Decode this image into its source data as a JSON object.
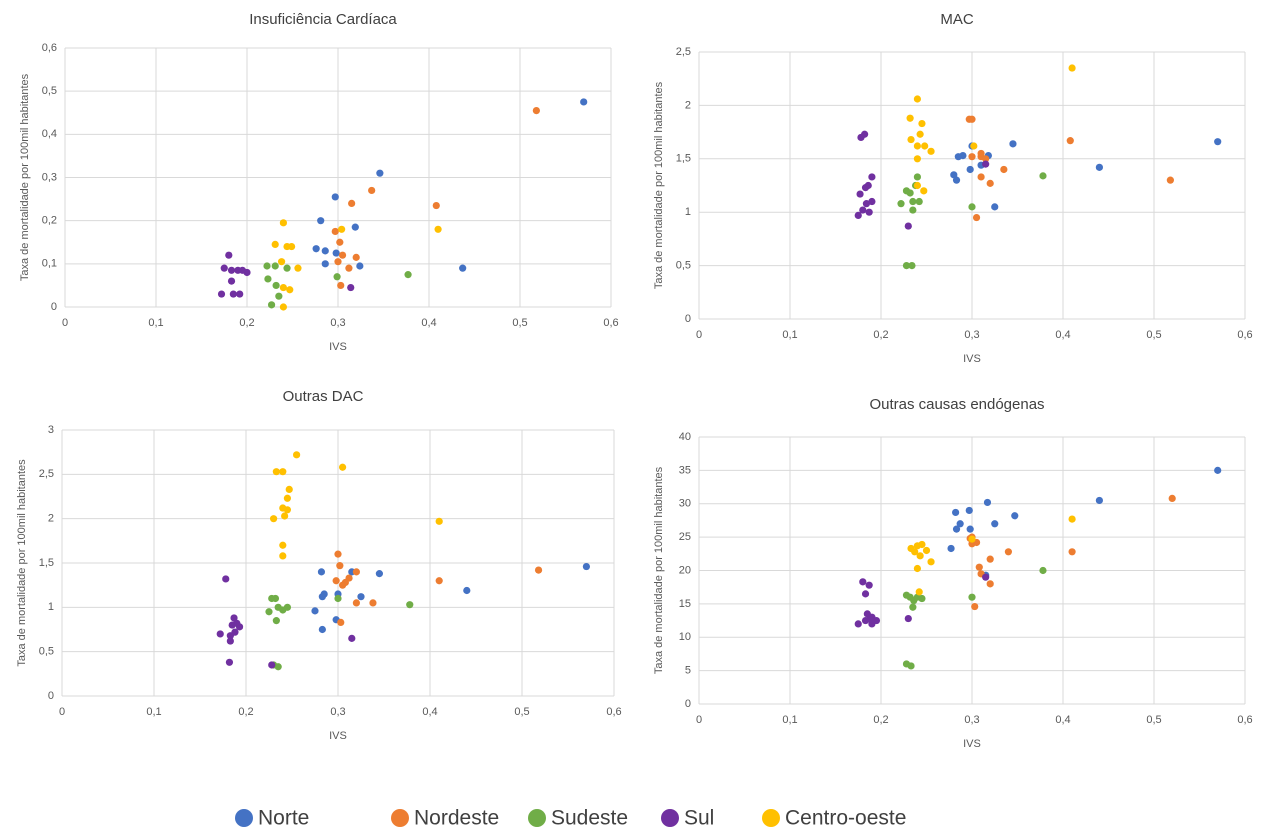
{
  "chart_data": [
    {
      "type": "scatter",
      "title": "Insuficiência Cardíaca",
      "xlabel": "IVS",
      "ylabel": "Taxa de mortalidade por 100mil habitantes",
      "grid": true,
      "xlim": [
        0,
        0.6
      ],
      "xticks": [
        0,
        {
          "value": 0.1,
          "label": "0,1"
        },
        {
          "value": 0.2,
          "label": "0,2"
        },
        {
          "value": 0.3,
          "label": "0,3"
        },
        {
          "value": 0.4,
          "label": "0,4"
        },
        {
          "value": 0.5,
          "label": "0,5"
        },
        {
          "value": 0.6,
          "label": "0,6"
        }
      ],
      "ylim": [
        0,
        0.6
      ],
      "yticks": [
        0,
        {
          "value": 0.1,
          "label": "0,1"
        },
        {
          "value": 0.2,
          "label": "0,2"
        },
        {
          "value": 0.3,
          "label": "0,3"
        },
        {
          "value": 0.4,
          "label": "0,4"
        },
        {
          "value": 0.5,
          "label": "0,5"
        },
        {
          "value": 0.6,
          "label": "0,6"
        }
      ],
      "series": [
        {
          "name": "Norte",
          "color": "#4472c4",
          "x": [
            0.57,
            0.437,
            0.346,
            0.319,
            0.297,
            0.281,
            0.276,
            0.286,
            0.286,
            0.298,
            0.324
          ],
          "values": [
            0.475,
            0.09,
            0.31,
            0.185,
            0.255,
            0.2,
            0.135,
            0.13,
            0.1,
            0.125,
            0.095
          ]
        },
        {
          "name": "Nordeste",
          "color": "#ed7d31",
          "x": [
            0.518,
            0.408,
            0.337,
            0.315,
            0.297,
            0.302,
            0.305,
            0.312,
            0.32,
            0.303,
            0.3
          ],
          "values": [
            0.455,
            0.235,
            0.27,
            0.24,
            0.175,
            0.15,
            0.12,
            0.09,
            0.115,
            0.05,
            0.105
          ]
        },
        {
          "name": "Sudeste",
          "color": "#70ad47",
          "x": [
            0.377,
            0.222,
            0.231,
            0.244,
            0.223,
            0.232,
            0.235,
            0.227,
            0.299
          ],
          "values": [
            0.075,
            0.095,
            0.095,
            0.09,
            0.065,
            0.05,
            0.025,
            0.005,
            0.07
          ]
        },
        {
          "name": "Sul",
          "color": "#7030a0",
          "x": [
            0.18,
            0.175,
            0.183,
            0.19,
            0.195,
            0.183,
            0.172,
            0.185,
            0.192,
            0.2,
            0.314
          ],
          "values": [
            0.12,
            0.09,
            0.085,
            0.085,
            0.085,
            0.06,
            0.03,
            0.03,
            0.03,
            0.08,
            0.045
          ]
        },
        {
          "name": "Centro-oeste",
          "color": "#ffc000",
          "x": [
            0.41,
            0.304,
            0.24,
            0.231,
            0.244,
            0.249,
            0.256,
            0.238,
            0.24,
            0.247,
            0.24
          ],
          "values": [
            0.18,
            0.18,
            0.195,
            0.145,
            0.14,
            0.14,
            0.09,
            0.105,
            0.045,
            0.04,
            0.0
          ]
        }
      ]
    },
    {
      "type": "scatter",
      "title": "MAC",
      "xlabel": "IVS",
      "ylabel": "Taxa de mortalidade por 100mil habitantes",
      "grid": true,
      "xlim": [
        0,
        0.6
      ],
      "xticks": [
        0,
        {
          "value": 0.1,
          "label": "0,1"
        },
        {
          "value": 0.2,
          "label": "0,2"
        },
        {
          "value": 0.3,
          "label": "0,3"
        },
        {
          "value": 0.4,
          "label": "0,4"
        },
        {
          "value": 0.5,
          "label": "0,5"
        },
        {
          "value": 0.6,
          "label": "0,6"
        }
      ],
      "ylim": [
        0,
        2.5
      ],
      "yticks": [
        0,
        {
          "value": 0.5,
          "label": "0,5"
        },
        1,
        {
          "value": 1.5,
          "label": "1,5"
        },
        2,
        {
          "value": 2.5,
          "label": "2,5"
        }
      ],
      "series": [
        {
          "x": [
            0.57,
            0.44,
            0.345,
            0.325,
            0.3,
            0.298,
            0.285,
            0.29,
            0.28,
            0.283,
            0.318,
            0.31
          ],
          "values": [
            1.66,
            1.42,
            1.64,
            1.05,
            1.62,
            1.4,
            1.52,
            1.53,
            1.35,
            1.3,
            1.53,
            1.44
          ]
        },
        {
          "x": [
            0.518,
            0.408,
            0.335,
            0.32,
            0.3,
            0.297,
            0.3,
            0.31,
            0.315,
            0.31,
            0.305,
            0.31
          ],
          "values": [
            1.3,
            1.67,
            1.4,
            1.27,
            1.87,
            1.87,
            1.52,
            1.52,
            1.5,
            1.33,
            0.95,
            1.55
          ]
        },
        {
          "x": [
            0.378,
            0.3,
            0.228,
            0.234,
            0.222,
            0.228,
            0.232,
            0.238,
            0.24,
            0.235,
            0.242,
            0.235
          ],
          "values": [
            1.34,
            1.05,
            0.5,
            0.5,
            1.08,
            1.2,
            1.18,
            1.25,
            1.33,
            1.1,
            1.1,
            1.02
          ]
        },
        {
          "x": [
            0.178,
            0.182,
            0.19,
            0.183,
            0.186,
            0.177,
            0.175,
            0.18,
            0.187,
            0.19,
            0.184,
            0.23,
            0.315
          ],
          "values": [
            1.7,
            1.73,
            1.33,
            1.23,
            1.25,
            1.17,
            0.97,
            1.02,
            1.0,
            1.1,
            1.08,
            0.87,
            1.45
          ]
        },
        {
          "x": [
            0.41,
            0.24,
            0.232,
            0.245,
            0.243,
            0.233,
            0.24,
            0.248,
            0.255,
            0.24,
            0.24,
            0.247,
            0.302
          ],
          "values": [
            2.35,
            2.06,
            1.88,
            1.83,
            1.73,
            1.68,
            1.62,
            1.62,
            1.57,
            1.5,
            1.25,
            1.2,
            1.62
          ]
        }
      ]
    },
    {
      "type": "scatter",
      "title": "Outras DAC",
      "xlabel": "IVS",
      "ylabel": "Taxa de mortalidade por 100mil habitantes",
      "grid": true,
      "xlim": [
        0,
        0.6
      ],
      "xticks": [
        0,
        {
          "value": 0.1,
          "label": "0,1"
        },
        {
          "value": 0.2,
          "label": "0,2"
        },
        {
          "value": 0.3,
          "label": "0,3"
        },
        {
          "value": 0.4,
          "label": "0,4"
        },
        {
          "value": 0.5,
          "label": "0,5"
        },
        {
          "value": 0.6,
          "label": "0,6"
        }
      ],
      "ylim": [
        0,
        3
      ],
      "yticks": [
        0,
        {
          "value": 0.5,
          "label": "0,5"
        },
        1,
        {
          "value": 1.5,
          "label": "1,5"
        },
        2,
        {
          "value": 2.5,
          "label": "2,5"
        },
        3
      ],
      "series": [
        {
          "x": [
            0.57,
            0.44,
            0.345,
            0.325,
            0.315,
            0.3,
            0.298,
            0.285,
            0.283,
            0.282,
            0.275,
            0.283
          ],
          "values": [
            1.46,
            1.19,
            1.38,
            1.12,
            1.4,
            1.15,
            0.86,
            1.15,
            1.12,
            1.4,
            0.96,
            0.75
          ]
        },
        {
          "x": [
            0.518,
            0.41,
            0.338,
            0.32,
            0.32,
            0.312,
            0.308,
            0.305,
            0.3,
            0.302,
            0.298,
            0.303
          ],
          "values": [
            1.42,
            1.3,
            1.05,
            1.05,
            1.4,
            1.33,
            1.28,
            1.25,
            1.6,
            1.47,
            1.3,
            0.83
          ]
        },
        {
          "x": [
            0.378,
            0.3,
            0.228,
            0.232,
            0.225,
            0.235,
            0.24,
            0.245,
            0.233,
            0.23,
            0.235
          ],
          "values": [
            1.03,
            1.1,
            1.1,
            1.1,
            0.95,
            1.0,
            0.97,
            1.0,
            0.85,
            0.35,
            0.33
          ]
        },
        {
          "x": [
            0.178,
            0.187,
            0.19,
            0.185,
            0.193,
            0.188,
            0.183,
            0.172,
            0.183,
            0.182,
            0.228,
            0.315
          ],
          "values": [
            1.32,
            0.88,
            0.82,
            0.8,
            0.78,
            0.72,
            0.68,
            0.7,
            0.62,
            0.38,
            0.35,
            0.65
          ]
        },
        {
          "x": [
            0.255,
            0.305,
            0.233,
            0.24,
            0.247,
            0.245,
            0.24,
            0.245,
            0.23,
            0.242,
            0.41,
            0.24,
            0.24
          ],
          "values": [
            2.72,
            2.58,
            2.53,
            2.53,
            2.33,
            2.23,
            2.12,
            2.1,
            2.0,
            2.03,
            1.97,
            1.7,
            1.58
          ]
        }
      ]
    },
    {
      "type": "scatter",
      "title": "Outras causas endógenas",
      "xlabel": "IVS",
      "ylabel": "Taxa de mortalidade por 100mil habitantes",
      "grid": true,
      "xlim": [
        0,
        0.6
      ],
      "xticks": [
        0,
        {
          "value": 0.1,
          "label": "0,1"
        },
        {
          "value": 0.2,
          "label": "0,2"
        },
        {
          "value": 0.3,
          "label": "0,3"
        },
        {
          "value": 0.4,
          "label": "0,4"
        },
        {
          "value": 0.5,
          "label": "0,5"
        },
        {
          "value": 0.6,
          "label": "0,6"
        }
      ],
      "ylim": [
        0,
        40
      ],
      "yticks": [
        0,
        5,
        10,
        15,
        20,
        25,
        30,
        35,
        40
      ],
      "series": [
        {
          "x": [
            0.57,
            0.44,
            0.347,
            0.325,
            0.317,
            0.297,
            0.282,
            0.287,
            0.283,
            0.298,
            0.277,
            0.315
          ],
          "values": [
            35,
            30.5,
            28.2,
            27,
            30.2,
            29,
            28.7,
            27,
            26.2,
            26.2,
            23.3,
            19.3
          ]
        },
        {
          "x": [
            0.52,
            0.41,
            0.34,
            0.32,
            0.32,
            0.31,
            0.308,
            0.298,
            0.3,
            0.305,
            0.3,
            0.303
          ],
          "values": [
            30.8,
            22.8,
            22.8,
            21.7,
            18,
            19.5,
            20.5,
            24.8,
            24,
            24.2,
            25,
            14.6
          ]
        },
        {
          "x": [
            0.378,
            0.3,
            0.228,
            0.232,
            0.236,
            0.24,
            0.245,
            0.235,
            0.228,
            0.233
          ],
          "values": [
            20,
            16,
            16.3,
            16,
            15.5,
            16,
            15.8,
            14.5,
            6,
            5.7
          ]
        },
        {
          "x": [
            0.18,
            0.187,
            0.183,
            0.185,
            0.19,
            0.183,
            0.19,
            0.195,
            0.175,
            0.188,
            0.23,
            0.315
          ],
          "values": [
            18.3,
            17.8,
            16.5,
            13.5,
            13,
            12.5,
            12,
            12.5,
            12,
            12.8,
            12.8,
            19
          ]
        },
        {
          "x": [
            0.41,
            0.233,
            0.24,
            0.245,
            0.25,
            0.237,
            0.243,
            0.255,
            0.24,
            0.242,
            0.3
          ],
          "values": [
            27.7,
            23.3,
            23.7,
            23.9,
            23,
            22.8,
            22.2,
            21.3,
            20.3,
            16.8,
            24.7
          ]
        }
      ]
    }
  ]
}
